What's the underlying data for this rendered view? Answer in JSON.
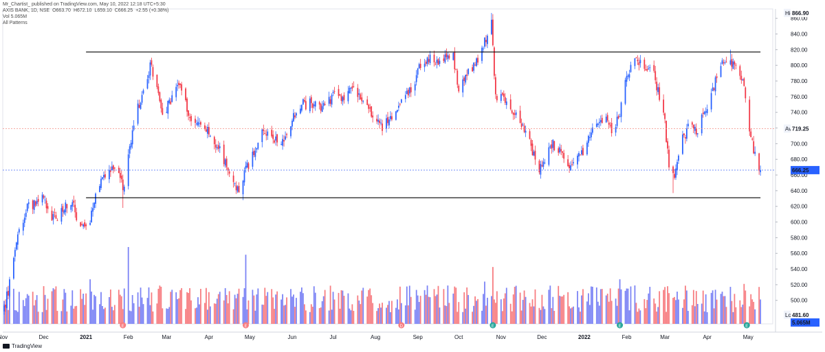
{
  "header": {
    "publish_line": "Mr_Chartist_ published on TradingView.com, May 10, 2022 12:18 UTC+5:30",
    "symbol": "AXIS BANK, 1D, NSE",
    "open": "O663.70",
    "high": "H672.10",
    "low": "L659.10",
    "close": "C666.25",
    "change": "+2.55 (+0.38%)",
    "volume_short": "Vol 5.065M",
    "volume_label": "Vol  5.065M",
    "patterns": "All Patterns"
  },
  "footer": {
    "brand": "TradingView"
  },
  "colors": {
    "up": "#2962ff",
    "down": "#f23645",
    "vol_up": "#7b83f5",
    "vol_down": "#f77c80",
    "level_line": "#000000",
    "avg_line": "#f28b82",
    "last_line": "#5b7cf7",
    "last_badge": "#2962ff",
    "grid": "#f0f3fa"
  },
  "chart_data": {
    "type": "candlestick",
    "symbol": "AXIS BANK, 1D, NSE",
    "currency": "INR",
    "y_axis": {
      "currency_label": "INR",
      "ticks": [
        "860.00",
        "840.00",
        "820.00",
        "800.00",
        "780.00",
        "760.00",
        "740.00",
        "720.00",
        "700.00",
        "680.00",
        "660.00",
        "640.00",
        "620.00",
        "600.00",
        "580.00",
        "560.00",
        "540.00",
        "520.00",
        "500.00"
      ],
      "range": [
        470,
        872
      ]
    },
    "x_axis": {
      "labels": [
        {
          "text": "Nov",
          "date": "2020-11-01",
          "bold": false
        },
        {
          "text": "Dec",
          "date": "2020-12-01",
          "bold": false
        },
        {
          "text": "2021",
          "date": "2021-01-01",
          "bold": true
        },
        {
          "text": "Feb",
          "date": "2021-02-01",
          "bold": false
        },
        {
          "text": "Mar",
          "date": "2021-03-01",
          "bold": false
        },
        {
          "text": "Apr",
          "date": "2021-04-01",
          "bold": false
        },
        {
          "text": "May",
          "date": "2021-05-01",
          "bold": false
        },
        {
          "text": "Jun",
          "date": "2021-06-01",
          "bold": false
        },
        {
          "text": "Jul",
          "date": "2021-07-01",
          "bold": false
        },
        {
          "text": "Aug",
          "date": "2021-08-01",
          "bold": false
        },
        {
          "text": "Sep",
          "date": "2021-09-01",
          "bold": false
        },
        {
          "text": "Oct",
          "date": "2021-10-01",
          "bold": false
        },
        {
          "text": "Nov",
          "date": "2021-11-01",
          "bold": false
        },
        {
          "text": "Dec",
          "date": "2021-12-01",
          "bold": false
        },
        {
          "text": "2022",
          "date": "2022-01-01",
          "bold": true
        },
        {
          "text": "Feb",
          "date": "2022-02-01",
          "bold": false
        },
        {
          "text": "Mar",
          "date": "2022-03-01",
          "bold": false
        },
        {
          "text": "Apr",
          "date": "2022-04-01",
          "bold": false
        },
        {
          "text": "May",
          "date": "2022-05-01",
          "bold": false
        }
      ],
      "range": [
        "2020-11-01",
        "2022-05-19"
      ]
    },
    "labels": {
      "high": {
        "text": "High",
        "value": "866.90"
      },
      "avg": {
        "text": "Avg",
        "value": "719.25"
      },
      "last": {
        "value": "666.25"
      },
      "low": {
        "text": "Low",
        "value": "481.60"
      },
      "volume": {
        "value": "5.065M"
      }
    },
    "horizontal_lines": [
      {
        "price": 817,
        "from": "2021-01-01",
        "to": "2022-05-10",
        "style": "solid"
      },
      {
        "price": 631,
        "from": "2021-01-01",
        "to": "2022-05-10",
        "style": "solid"
      },
      {
        "price": 719.25,
        "style": "dotted",
        "name": "Avg"
      },
      {
        "price": 666.25,
        "style": "dotted",
        "name": "Last"
      }
    ],
    "path": [
      [
        "2020-11-02",
        490
      ],
      [
        "2020-11-06",
        520
      ],
      [
        "2020-11-10",
        560
      ],
      [
        "2020-11-13",
        590
      ],
      [
        "2020-11-18",
        615
      ],
      [
        "2020-11-24",
        625
      ],
      [
        "2020-11-30",
        640
      ],
      [
        "2020-12-04",
        610
      ],
      [
        "2020-12-10",
        605
      ],
      [
        "2020-12-16",
        618
      ],
      [
        "2020-12-22",
        630
      ],
      [
        "2020-12-25",
        605
      ],
      [
        "2020-12-30",
        590
      ],
      [
        "2021-01-04",
        605
      ],
      [
        "2021-01-08",
        635
      ],
      [
        "2021-01-12",
        655
      ],
      [
        "2021-01-18",
        672
      ],
      [
        "2021-01-25",
        660
      ],
      [
        "2021-01-29",
        640
      ],
      [
        "2021-02-02",
        700
      ],
      [
        "2021-02-08",
        745
      ],
      [
        "2021-02-12",
        770
      ],
      [
        "2021-02-17",
        800
      ],
      [
        "2021-02-22",
        775
      ],
      [
        "2021-02-26",
        735
      ],
      [
        "2021-03-05",
        760
      ],
      [
        "2021-03-10",
        775
      ],
      [
        "2021-03-16",
        745
      ],
      [
        "2021-03-22",
        725
      ],
      [
        "2021-03-30",
        720
      ],
      [
        "2021-04-06",
        700
      ],
      [
        "2021-04-12",
        680
      ],
      [
        "2021-04-16",
        655
      ],
      [
        "2021-04-22",
        640
      ],
      [
        "2021-04-28",
        665
      ],
      [
        "2021-05-04",
        690
      ],
      [
        "2021-05-10",
        715
      ],
      [
        "2021-05-17",
        710
      ],
      [
        "2021-05-24",
        700
      ],
      [
        "2021-05-28",
        712
      ],
      [
        "2021-06-03",
        740
      ],
      [
        "2021-06-09",
        750
      ],
      [
        "2021-06-15",
        752
      ],
      [
        "2021-06-23",
        745
      ],
      [
        "2021-07-01",
        762
      ],
      [
        "2021-07-08",
        758
      ],
      [
        "2021-07-14",
        770
      ],
      [
        "2021-07-20",
        764
      ],
      [
        "2021-07-26",
        745
      ],
      [
        "2021-08-02",
        735
      ],
      [
        "2021-08-06",
        720
      ],
      [
        "2021-08-12",
        733
      ],
      [
        "2021-08-18",
        752
      ],
      [
        "2021-08-24",
        762
      ],
      [
        "2021-08-27",
        768
      ],
      [
        "2021-09-02",
        795
      ],
      [
        "2021-09-08",
        810
      ],
      [
        "2021-09-14",
        800
      ],
      [
        "2021-09-20",
        808
      ],
      [
        "2021-09-27",
        812
      ],
      [
        "2021-10-01",
        770
      ],
      [
        "2021-10-06",
        785
      ],
      [
        "2021-10-13",
        800
      ],
      [
        "2021-10-20",
        830
      ],
      [
        "2021-10-25",
        858
      ],
      [
        "2021-10-28",
        760
      ],
      [
        "2021-11-03",
        760
      ],
      [
        "2021-11-09",
        740
      ],
      [
        "2021-11-16",
        725
      ],
      [
        "2021-11-22",
        700
      ],
      [
        "2021-11-29",
        668
      ],
      [
        "2021-12-03",
        680
      ],
      [
        "2021-12-08",
        700
      ],
      [
        "2021-12-14",
        690
      ],
      [
        "2021-12-20",
        668
      ],
      [
        "2021-12-27",
        678
      ],
      [
        "2022-01-03",
        702
      ],
      [
        "2022-01-10",
        728
      ],
      [
        "2022-01-17",
        735
      ],
      [
        "2022-01-21",
        715
      ],
      [
        "2022-01-27",
        740
      ],
      [
        "2022-02-01",
        790
      ],
      [
        "2022-02-08",
        808
      ],
      [
        "2022-02-14",
        798
      ],
      [
        "2022-02-21",
        786
      ],
      [
        "2022-02-28",
        745
      ],
      [
        "2022-03-04",
        670
      ],
      [
        "2022-03-08",
        662
      ],
      [
        "2022-03-14",
        705
      ],
      [
        "2022-03-18",
        720
      ],
      [
        "2022-03-24",
        715
      ],
      [
        "2022-03-30",
        740
      ],
      [
        "2022-04-05",
        770
      ],
      [
        "2022-04-11",
        800
      ],
      [
        "2022-04-18",
        805
      ],
      [
        "2022-04-22",
        795
      ],
      [
        "2022-04-27",
        782
      ],
      [
        "2022-05-02",
        715
      ],
      [
        "2022-05-05",
        690
      ],
      [
        "2022-05-09",
        662
      ],
      [
        "2022-05-10",
        666.25
      ]
    ],
    "wick_extremes": [
      {
        "date": "2020-11-02",
        "low": 481.6
      },
      {
        "date": "2021-01-28",
        "low": 618
      },
      {
        "date": "2021-04-26",
        "low": 628
      },
      {
        "date": "2021-10-25",
        "high": 866.9
      },
      {
        "date": "2022-03-07",
        "low": 637
      },
      {
        "date": "2022-04-18",
        "high": 820
      }
    ],
    "volume_spikes": [
      {
        "date": "2021-02-01",
        "rel": 1.0
      },
      {
        "date": "2021-04-28",
        "rel": 0.9
      },
      {
        "date": "2021-01-04",
        "rel": 0.58
      },
      {
        "date": "2021-10-26",
        "rel": 0.74
      },
      {
        "date": "2021-10-20",
        "rel": 0.55
      },
      {
        "date": "2022-01-27",
        "rel": 0.58
      },
      {
        "date": "2022-04-28",
        "rel": 0.52
      },
      {
        "date": "2022-02-01",
        "rel": 0.46
      }
    ],
    "event_markers": [
      {
        "date": "2021-01-28",
        "letter": "E",
        "color": "#f77c80"
      },
      {
        "date": "2021-04-28",
        "letter": "E",
        "color": "#f77c80"
      },
      {
        "date": "2021-08-20",
        "letter": "D",
        "color": "#f77c80"
      },
      {
        "date": "2021-10-26",
        "letter": "E",
        "color": "#26a69a"
      },
      {
        "date": "2022-01-27",
        "letter": "E",
        "color": "#26a69a"
      },
      {
        "date": "2022-04-30",
        "letter": "E",
        "color": "#26a69a"
      }
    ]
  }
}
